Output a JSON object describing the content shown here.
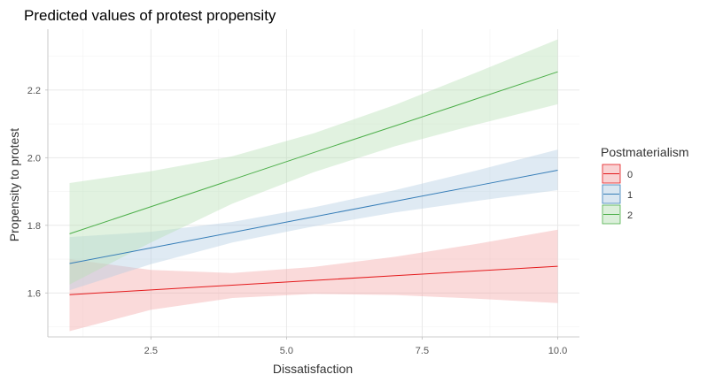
{
  "chart_data": {
    "type": "line",
    "title": "Predicted values of protest propensity",
    "xlabel": "Dissatisfaction",
    "ylabel": "Propensity to protest",
    "xlim": [
      1,
      10
    ],
    "ylim": [
      1.47,
      2.38
    ],
    "x_ticks": [
      2.5,
      5.0,
      7.5,
      10.0
    ],
    "x_tick_labels": [
      "2.5",
      "5.0",
      "7.5",
      "10.0"
    ],
    "y_ticks": [
      1.6,
      1.8,
      2.0,
      2.2
    ],
    "y_tick_labels": [
      "1.6",
      "1.8",
      "2.0",
      "2.2"
    ],
    "grid": true,
    "legend": {
      "title": "Postmaterialism",
      "position": "right"
    },
    "series": [
      {
        "name": "0",
        "color": "#e41a1c",
        "fill": "#f4a6a8",
        "x": [
          1,
          2.5,
          4,
          5.5,
          7,
          8.5,
          10
        ],
        "y": [
          1.595,
          1.609,
          1.623,
          1.637,
          1.651,
          1.665,
          1.679
        ],
        "lower": [
          1.487,
          1.55,
          1.585,
          1.597,
          1.594,
          1.583,
          1.57
        ],
        "upper": [
          1.7,
          1.668,
          1.659,
          1.677,
          1.707,
          1.745,
          1.787
        ]
      },
      {
        "name": "1",
        "color": "#377eb8",
        "fill": "#b3cde3",
        "x": [
          1,
          2.5,
          4,
          5.5,
          7,
          8.5,
          10
        ],
        "y": [
          1.687,
          1.733,
          1.779,
          1.825,
          1.871,
          1.917,
          1.963
        ],
        "lower": [
          1.608,
          1.685,
          1.749,
          1.797,
          1.838,
          1.872,
          1.904
        ],
        "upper": [
          1.765,
          1.781,
          1.81,
          1.853,
          1.904,
          1.962,
          2.024
        ]
      },
      {
        "name": "2",
        "color": "#4daf4a",
        "fill": "#b8dfb6",
        "x": [
          1,
          2.5,
          4,
          5.5,
          7,
          8.5,
          10
        ],
        "y": [
          1.775,
          1.855,
          1.935,
          2.015,
          2.094,
          2.174,
          2.254
        ],
        "lower": [
          1.625,
          1.749,
          1.864,
          1.957,
          2.034,
          2.098,
          2.158
        ],
        "upper": [
          1.925,
          1.96,
          2.004,
          2.072,
          2.156,
          2.252,
          2.35
        ]
      }
    ]
  }
}
